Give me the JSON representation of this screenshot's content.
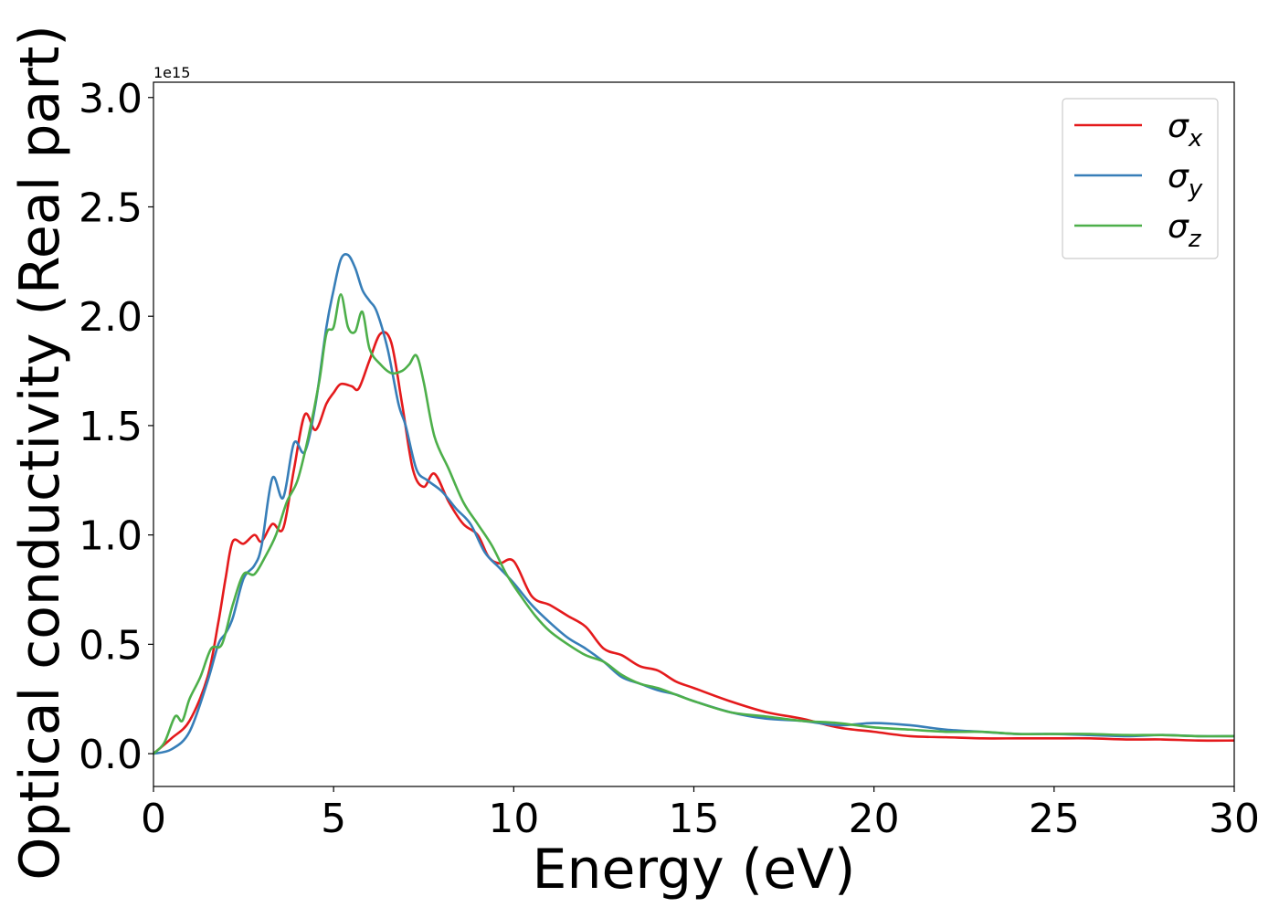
{
  "chart_data": {
    "type": "line",
    "title": "",
    "xlabel": "Energy (eV)",
    "ylabel": "Optical conductivity (Real part)",
    "y_offset_text": "1e15",
    "xlim": [
      0,
      30
    ],
    "ylim": [
      -0.15,
      3.07
    ],
    "xticks": [
      0,
      5,
      10,
      15,
      20,
      25,
      30
    ],
    "xtick_labels": [
      "0",
      "5",
      "10",
      "15",
      "20",
      "25",
      "30"
    ],
    "yticks": [
      0.0,
      0.5,
      1.0,
      1.5,
      2.0,
      2.5,
      3.0
    ],
    "ytick_labels": [
      "0.0",
      "0.5",
      "1.0",
      "1.5",
      "2.0",
      "2.5",
      "3.0"
    ],
    "grid": false,
    "legend_position": "top-right",
    "series": [
      {
        "name": "σx",
        "symbol": "σ",
        "subscript": "x",
        "color": "#e41a1c",
        "x": [
          0,
          0.5,
          1.0,
          1.5,
          1.8,
          2.0,
          2.2,
          2.5,
          2.8,
          3.0,
          3.3,
          3.6,
          3.9,
          4.2,
          4.5,
          4.8,
          5.0,
          5.2,
          5.5,
          5.7,
          6.0,
          6.3,
          6.6,
          6.9,
          7.2,
          7.5,
          7.8,
          8.2,
          8.6,
          9.0,
          9.3,
          9.6,
          10.0,
          10.5,
          11.0,
          11.5,
          12.0,
          12.5,
          13.0,
          13.5,
          14.0,
          14.5,
          15.0,
          16.0,
          17.0,
          18.0,
          19.0,
          20.0,
          21.0,
          22.0,
          23.0,
          24.0,
          25.0,
          26.0,
          27.0,
          28.0,
          29.0,
          30.0
        ],
        "values": [
          0.0,
          0.07,
          0.15,
          0.35,
          0.6,
          0.8,
          0.97,
          0.96,
          1.0,
          0.97,
          1.05,
          1.03,
          1.3,
          1.55,
          1.48,
          1.6,
          1.65,
          1.69,
          1.68,
          1.67,
          1.8,
          1.92,
          1.88,
          1.6,
          1.3,
          1.22,
          1.28,
          1.15,
          1.05,
          1.0,
          0.9,
          0.87,
          0.88,
          0.72,
          0.68,
          0.63,
          0.58,
          0.48,
          0.45,
          0.4,
          0.38,
          0.33,
          0.3,
          0.24,
          0.19,
          0.16,
          0.12,
          0.1,
          0.08,
          0.075,
          0.07,
          0.07,
          0.07,
          0.07,
          0.065,
          0.065,
          0.06,
          0.06
        ]
      },
      {
        "name": "σy",
        "symbol": "σ",
        "subscript": "y",
        "color": "#377eb8",
        "x": [
          0,
          0.5,
          1.0,
          1.5,
          1.8,
          2.0,
          2.2,
          2.5,
          2.8,
          3.0,
          3.3,
          3.6,
          3.9,
          4.2,
          4.5,
          4.8,
          5.0,
          5.2,
          5.4,
          5.6,
          5.8,
          6.0,
          6.2,
          6.5,
          6.8,
          7.0,
          7.3,
          7.6,
          8.0,
          8.4,
          8.8,
          9.2,
          9.6,
          10.0,
          10.5,
          11.0,
          11.5,
          12.0,
          12.5,
          13.0,
          13.5,
          14.0,
          14.5,
          15.0,
          16.0,
          17.0,
          18.0,
          19.0,
          20.0,
          21.0,
          22.0,
          23.0,
          24.0,
          25.0,
          26.0,
          27.0,
          28.0,
          29.0,
          30.0
        ],
        "values": [
          0.0,
          0.02,
          0.1,
          0.33,
          0.5,
          0.55,
          0.62,
          0.8,
          0.86,
          0.95,
          1.26,
          1.17,
          1.42,
          1.38,
          1.6,
          1.95,
          2.12,
          2.26,
          2.28,
          2.22,
          2.12,
          2.07,
          2.02,
          1.85,
          1.6,
          1.5,
          1.3,
          1.25,
          1.2,
          1.12,
          1.05,
          0.92,
          0.85,
          0.78,
          0.68,
          0.6,
          0.53,
          0.48,
          0.42,
          0.35,
          0.32,
          0.29,
          0.27,
          0.24,
          0.19,
          0.16,
          0.15,
          0.13,
          0.14,
          0.13,
          0.11,
          0.1,
          0.09,
          0.09,
          0.085,
          0.08,
          0.085,
          0.08,
          0.08
        ]
      },
      {
        "name": "σz",
        "symbol": "σ",
        "subscript": "z",
        "color": "#4daf4a",
        "x": [
          0,
          0.3,
          0.6,
          0.8,
          1.0,
          1.3,
          1.6,
          1.9,
          2.2,
          2.5,
          2.8,
          3.1,
          3.4,
          3.7,
          4.0,
          4.3,
          4.6,
          4.8,
          5.0,
          5.2,
          5.4,
          5.6,
          5.8,
          6.0,
          6.3,
          6.6,
          6.9,
          7.1,
          7.3,
          7.5,
          7.8,
          8.2,
          8.6,
          9.0,
          9.4,
          9.8,
          10.2,
          10.6,
          11.0,
          11.5,
          12.0,
          12.5,
          13.0,
          13.5,
          14.0,
          14.5,
          15.0,
          16.0,
          17.0,
          18.0,
          19.0,
          20.0,
          21.0,
          22.0,
          23.0,
          24.0,
          25.0,
          26.0,
          27.0,
          28.0,
          29.0,
          30.0
        ],
        "values": [
          0.0,
          0.05,
          0.17,
          0.15,
          0.25,
          0.35,
          0.48,
          0.5,
          0.68,
          0.82,
          0.82,
          0.9,
          1.0,
          1.15,
          1.25,
          1.45,
          1.7,
          1.92,
          1.95,
          2.1,
          1.95,
          1.93,
          2.02,
          1.85,
          1.78,
          1.74,
          1.75,
          1.78,
          1.82,
          1.7,
          1.45,
          1.3,
          1.15,
          1.05,
          0.95,
          0.82,
          0.72,
          0.63,
          0.56,
          0.5,
          0.45,
          0.42,
          0.36,
          0.32,
          0.3,
          0.27,
          0.24,
          0.19,
          0.17,
          0.15,
          0.14,
          0.12,
          0.11,
          0.1,
          0.1,
          0.09,
          0.09,
          0.09,
          0.085,
          0.085,
          0.08,
          0.08
        ]
      }
    ]
  }
}
